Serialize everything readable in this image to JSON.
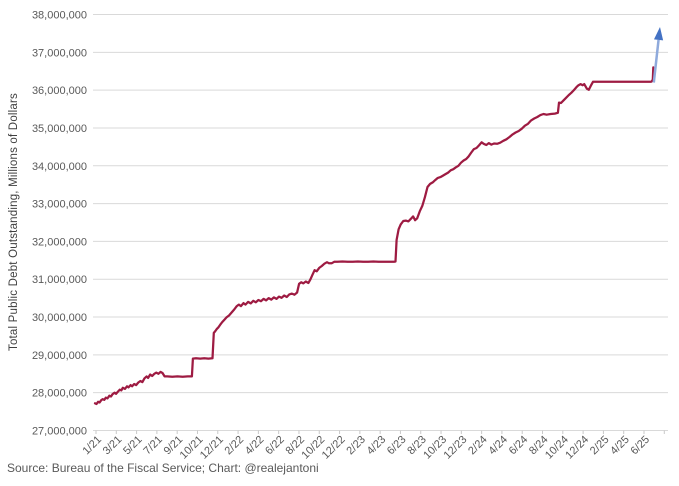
{
  "chart": {
    "y_axis_title": "Total Public Debt Outstanding, Millions of Dollars",
    "source_note": "Source: Bureau of the Fiscal Service; Chart: @realejantoni"
  },
  "chart_data": {
    "type": "line",
    "title": "",
    "xlabel": "",
    "ylabel": "Total Public Debt Outstanding, Millions of Dollars",
    "ylim": [
      27000000,
      38000000
    ],
    "y_tick_interval": 1000000,
    "grid": "horizontal",
    "legend": "none",
    "x_unit": "months since January 2021 (1/21)",
    "y_tick_labels": [
      "27,000,000",
      "28,000,000",
      "29,000,000",
      "30,000,000",
      "31,000,000",
      "32,000,000",
      "33,000,000",
      "34,000,000",
      "35,000,000",
      "36,000,000",
      "37,000,000",
      "38,000,000"
    ],
    "x_tick_labels": [
      "1/21",
      "3/21",
      "5/21",
      "7/21",
      "9/21",
      "10/21",
      "12/21",
      "2/22",
      "4/22",
      "6/22",
      "8/22",
      "10/22",
      "12/22",
      "2/23",
      "4/23",
      "6/23",
      "8/23",
      "10/23",
      "12/23",
      "2/24",
      "4/24",
      "6/24",
      "8/24",
      "10/24",
      "12/24",
      "2/25",
      "4/25",
      "6/25"
    ],
    "colors": {
      "line": "#9E1B42",
      "arrow_head": "#4472C4",
      "arrow_shaft": "#8FAADC",
      "gridline": "#D9D9D9",
      "axis": "#C9C9C9",
      "tick_label": "#595959",
      "axis_title": "#3F3F3F",
      "source": "#595959"
    },
    "series": [
      {
        "name": "Total Public Debt Outstanding (Millions of Dollars)",
        "points": [
          [
            0.0,
            27720000
          ],
          [
            0.15,
            27700000
          ],
          [
            0.3,
            27760000
          ],
          [
            0.45,
            27740000
          ],
          [
            0.6,
            27800000
          ],
          [
            0.75,
            27830000
          ],
          [
            0.9,
            27810000
          ],
          [
            1.05,
            27870000
          ],
          [
            1.2,
            27850000
          ],
          [
            1.4,
            27920000
          ],
          [
            1.55,
            27900000
          ],
          [
            1.7,
            27960000
          ],
          [
            1.9,
            28000000
          ],
          [
            2.05,
            27970000
          ],
          [
            2.2,
            28020000
          ],
          [
            2.4,
            28080000
          ],
          [
            2.55,
            28060000
          ],
          [
            2.7,
            28130000
          ],
          [
            2.9,
            28100000
          ],
          [
            3.1,
            28170000
          ],
          [
            3.25,
            28140000
          ],
          [
            3.45,
            28200000
          ],
          [
            3.6,
            28170000
          ],
          [
            3.8,
            28230000
          ],
          [
            4.0,
            28200000
          ],
          [
            4.2,
            28270000
          ],
          [
            4.4,
            28310000
          ],
          [
            4.6,
            28280000
          ],
          [
            4.8,
            28380000
          ],
          [
            5.0,
            28430000
          ],
          [
            5.15,
            28390000
          ],
          [
            5.35,
            28480000
          ],
          [
            5.55,
            28440000
          ],
          [
            5.75,
            28500000
          ],
          [
            5.95,
            28530000
          ],
          [
            6.15,
            28500000
          ],
          [
            6.35,
            28550000
          ],
          [
            6.55,
            28520000
          ],
          [
            6.75,
            28430000
          ],
          [
            7.0,
            28430000
          ],
          [
            7.5,
            28420000
          ],
          [
            8.0,
            28430000
          ],
          [
            8.5,
            28420000
          ],
          [
            9.0,
            28430000
          ],
          [
            9.4,
            28430000
          ],
          [
            9.5,
            28900000
          ],
          [
            9.8,
            28910000
          ],
          [
            10.2,
            28900000
          ],
          [
            10.6,
            28910000
          ],
          [
            11.0,
            28900000
          ],
          [
            11.4,
            28910000
          ],
          [
            11.52,
            29580000
          ],
          [
            11.65,
            29620000
          ],
          [
            11.8,
            29680000
          ],
          [
            11.95,
            29720000
          ],
          [
            12.15,
            29800000
          ],
          [
            12.35,
            29870000
          ],
          [
            12.55,
            29930000
          ],
          [
            12.75,
            29990000
          ],
          [
            13.0,
            30040000
          ],
          [
            13.25,
            30120000
          ],
          [
            13.5,
            30200000
          ],
          [
            13.75,
            30290000
          ],
          [
            13.95,
            30330000
          ],
          [
            14.15,
            30290000
          ],
          [
            14.4,
            30370000
          ],
          [
            14.6,
            30330000
          ],
          [
            14.85,
            30400000
          ],
          [
            15.1,
            30360000
          ],
          [
            15.35,
            30430000
          ],
          [
            15.6,
            30390000
          ],
          [
            15.85,
            30450000
          ],
          [
            16.1,
            30420000
          ],
          [
            16.35,
            30480000
          ],
          [
            16.6,
            30440000
          ],
          [
            16.85,
            30500000
          ],
          [
            17.1,
            30460000
          ],
          [
            17.35,
            30520000
          ],
          [
            17.6,
            30480000
          ],
          [
            17.85,
            30540000
          ],
          [
            18.1,
            30510000
          ],
          [
            18.35,
            30570000
          ],
          [
            18.6,
            30530000
          ],
          [
            18.85,
            30600000
          ],
          [
            19.1,
            30620000
          ],
          [
            19.35,
            30590000
          ],
          [
            19.6,
            30650000
          ],
          [
            19.8,
            30880000
          ],
          [
            20.0,
            30920000
          ],
          [
            20.2,
            30890000
          ],
          [
            20.45,
            30940000
          ],
          [
            20.7,
            30900000
          ],
          [
            20.9,
            31000000
          ],
          [
            21.1,
            31120000
          ],
          [
            21.3,
            31240000
          ],
          [
            21.5,
            31210000
          ],
          [
            21.75,
            31300000
          ],
          [
            22.0,
            31350000
          ],
          [
            22.25,
            31410000
          ],
          [
            22.5,
            31450000
          ],
          [
            22.7,
            31420000
          ],
          [
            22.95,
            31420000
          ],
          [
            23.2,
            31460000
          ],
          [
            23.5,
            31460000
          ],
          [
            24.0,
            31470000
          ],
          [
            24.5,
            31460000
          ],
          [
            25.0,
            31460000
          ],
          [
            25.5,
            31470000
          ],
          [
            26.0,
            31460000
          ],
          [
            26.5,
            31460000
          ],
          [
            27.0,
            31470000
          ],
          [
            27.5,
            31460000
          ],
          [
            28.0,
            31460000
          ],
          [
            28.5,
            31460000
          ],
          [
            29.0,
            31460000
          ],
          [
            29.15,
            31470000
          ],
          [
            29.25,
            32040000
          ],
          [
            29.45,
            32320000
          ],
          [
            29.65,
            32450000
          ],
          [
            29.9,
            32540000
          ],
          [
            30.15,
            32550000
          ],
          [
            30.4,
            32530000
          ],
          [
            30.65,
            32600000
          ],
          [
            30.85,
            32660000
          ],
          [
            31.05,
            32560000
          ],
          [
            31.25,
            32610000
          ],
          [
            31.5,
            32800000
          ],
          [
            31.75,
            32940000
          ],
          [
            32.0,
            33170000
          ],
          [
            32.25,
            33440000
          ],
          [
            32.5,
            33520000
          ],
          [
            32.75,
            33560000
          ],
          [
            33.0,
            33620000
          ],
          [
            33.25,
            33680000
          ],
          [
            33.5,
            33700000
          ],
          [
            33.75,
            33740000
          ],
          [
            34.0,
            33780000
          ],
          [
            34.25,
            33820000
          ],
          [
            34.5,
            33880000
          ],
          [
            34.75,
            33910000
          ],
          [
            35.0,
            33960000
          ],
          [
            35.25,
            34000000
          ],
          [
            35.5,
            34080000
          ],
          [
            35.75,
            34140000
          ],
          [
            36.0,
            34180000
          ],
          [
            36.25,
            34250000
          ],
          [
            36.5,
            34350000
          ],
          [
            36.75,
            34440000
          ],
          [
            37.0,
            34470000
          ],
          [
            37.25,
            34540000
          ],
          [
            37.5,
            34620000
          ],
          [
            37.7,
            34580000
          ],
          [
            37.95,
            34550000
          ],
          [
            38.2,
            34600000
          ],
          [
            38.45,
            34560000
          ],
          [
            38.7,
            34590000
          ],
          [
            39.0,
            34580000
          ],
          [
            39.3,
            34610000
          ],
          [
            39.6,
            34660000
          ],
          [
            39.9,
            34700000
          ],
          [
            40.2,
            34760000
          ],
          [
            40.5,
            34830000
          ],
          [
            40.8,
            34880000
          ],
          [
            41.1,
            34920000
          ],
          [
            41.4,
            34980000
          ],
          [
            41.7,
            35060000
          ],
          [
            42.0,
            35110000
          ],
          [
            42.3,
            35200000
          ],
          [
            42.6,
            35250000
          ],
          [
            42.9,
            35290000
          ],
          [
            43.2,
            35340000
          ],
          [
            43.5,
            35370000
          ],
          [
            43.8,
            35350000
          ],
          [
            44.2,
            35370000
          ],
          [
            44.6,
            35380000
          ],
          [
            44.9,
            35400000
          ],
          [
            45.0,
            35670000
          ],
          [
            45.2,
            35660000
          ],
          [
            45.45,
            35730000
          ],
          [
            45.7,
            35800000
          ],
          [
            45.95,
            35870000
          ],
          [
            46.2,
            35930000
          ],
          [
            46.45,
            36000000
          ],
          [
            46.7,
            36080000
          ],
          [
            46.9,
            36130000
          ],
          [
            47.1,
            36160000
          ],
          [
            47.3,
            36130000
          ],
          [
            47.45,
            36160000
          ],
          [
            47.7,
            36040000
          ],
          [
            47.9,
            36010000
          ],
          [
            48.1,
            36120000
          ],
          [
            48.3,
            36220000
          ],
          [
            48.6,
            36220000
          ],
          [
            49.0,
            36220000
          ],
          [
            49.5,
            36220000
          ],
          [
            50.0,
            36220000
          ],
          [
            50.5,
            36220000
          ],
          [
            51.0,
            36220000
          ],
          [
            51.5,
            36220000
          ],
          [
            52.0,
            36220000
          ],
          [
            52.5,
            36220000
          ],
          [
            53.0,
            36220000
          ],
          [
            53.5,
            36220000
          ],
          [
            53.9,
            36220000
          ],
          [
            54.0,
            36230000
          ],
          [
            54.1,
            36280000
          ],
          [
            54.15,
            36600000
          ]
        ]
      }
    ],
    "arrow": {
      "name": "projection-arrow",
      "from_t": 54.2,
      "from_value": 36200000,
      "to_t": 54.8,
      "to_value": 37670000
    }
  }
}
